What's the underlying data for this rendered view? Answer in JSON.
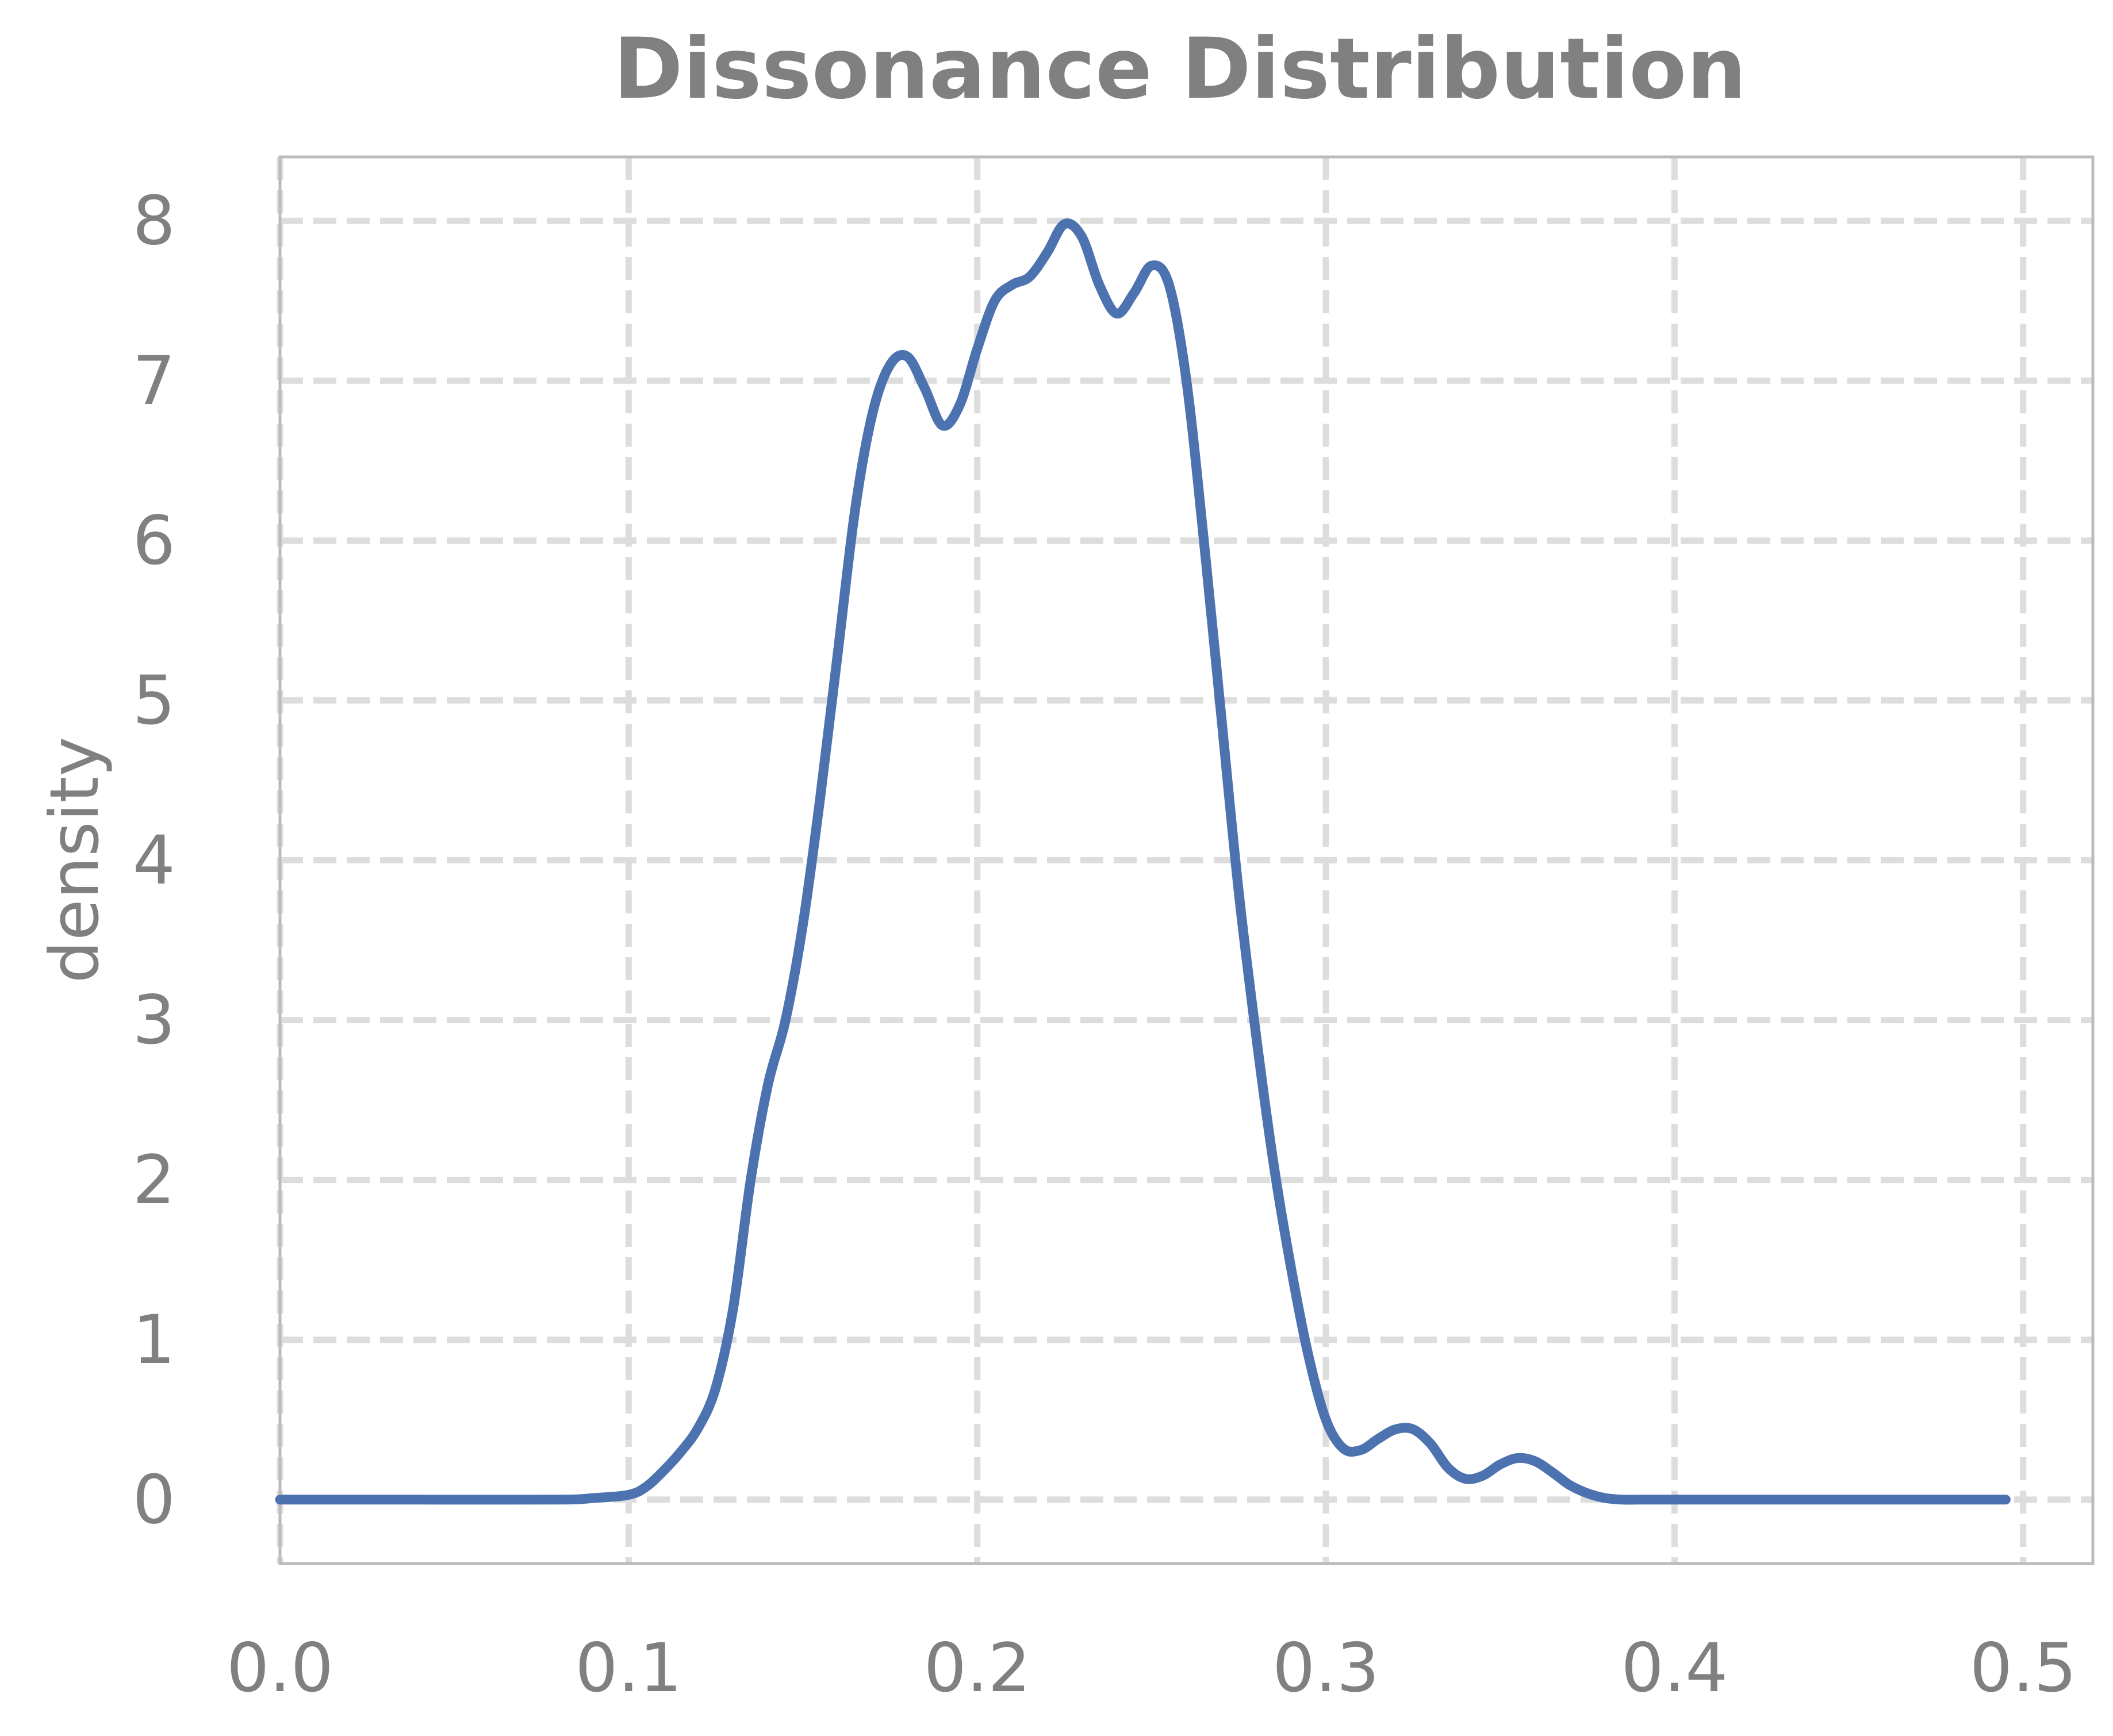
{
  "chart_data": {
    "type": "line",
    "title": "Dissonance Distribution",
    "xlabel": "",
    "ylabel": "density",
    "xlim": [
      0.0,
      0.52
    ],
    "ylim": [
      -0.4,
      8.4
    ],
    "xticks": [
      0.0,
      0.1,
      0.2,
      0.3,
      0.4,
      0.5
    ],
    "xtick_labels": [
      "0.0",
      "0.1",
      "0.2",
      "0.3",
      "0.4",
      "0.5"
    ],
    "yticks": [
      0,
      1,
      2,
      3,
      4,
      5,
      6,
      7,
      8
    ],
    "ytick_labels": [
      "0",
      "1",
      "2",
      "3",
      "4",
      "5",
      "6",
      "7",
      "8"
    ],
    "grid": true,
    "legend": "none",
    "series": [
      {
        "color": "#4c72b0",
        "x": [
          0.0,
          0.04,
          0.08,
          0.09,
          0.1,
          0.105,
          0.11,
          0.115,
          0.12,
          0.125,
          0.13,
          0.135,
          0.14,
          0.145,
          0.15,
          0.155,
          0.16,
          0.165,
          0.17,
          0.175,
          0.18,
          0.185,
          0.19,
          0.195,
          0.2,
          0.205,
          0.21,
          0.215,
          0.22,
          0.225,
          0.23,
          0.235,
          0.24,
          0.245,
          0.25,
          0.255,
          0.26,
          0.265,
          0.27,
          0.275,
          0.28,
          0.285,
          0.29,
          0.295,
          0.3,
          0.305,
          0.31,
          0.315,
          0.32,
          0.325,
          0.33,
          0.335,
          0.34,
          0.345,
          0.35,
          0.355,
          0.36,
          0.365,
          0.37,
          0.375,
          0.38,
          0.385,
          0.39,
          0.395,
          0.4,
          0.45,
          0.495
        ],
        "y": [
          0.0,
          0.0,
          0.0,
          0.01,
          0.03,
          0.08,
          0.18,
          0.3,
          0.45,
          0.7,
          1.2,
          2.0,
          2.6,
          3.0,
          3.6,
          4.4,
          5.3,
          6.2,
          6.8,
          7.1,
          7.15,
          6.95,
          6.72,
          6.85,
          7.2,
          7.5,
          7.6,
          7.65,
          7.8,
          7.98,
          7.9,
          7.6,
          7.42,
          7.55,
          7.72,
          7.6,
          7.0,
          6.0,
          4.9,
          3.8,
          2.9,
          2.1,
          1.45,
          0.9,
          0.5,
          0.32,
          0.31,
          0.38,
          0.44,
          0.44,
          0.35,
          0.2,
          0.13,
          0.15,
          0.22,
          0.26,
          0.24,
          0.17,
          0.09,
          0.04,
          0.01,
          0.0,
          0.0,
          0.0,
          0.0,
          0.0,
          0.0
        ]
      }
    ]
  }
}
